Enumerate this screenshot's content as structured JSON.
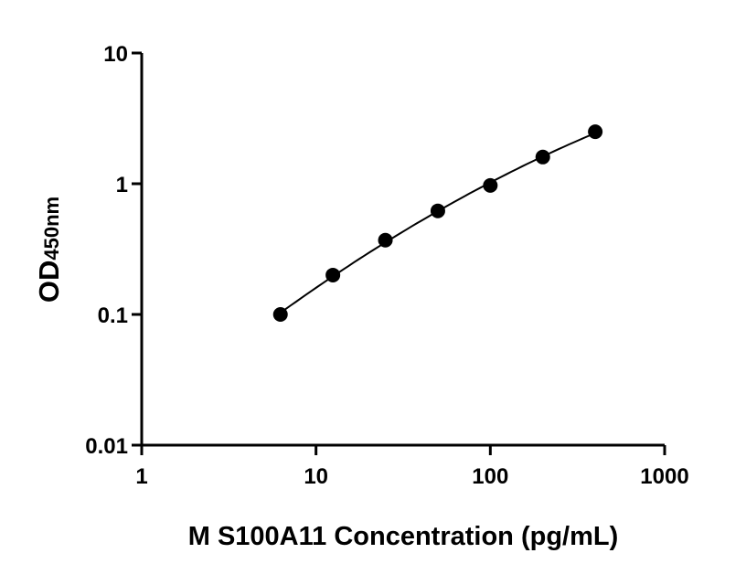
{
  "chart_data": {
    "type": "scatter",
    "title": "",
    "xlabel": "M S100A11 Concentration (pg/mL)",
    "ylabel_main": "OD",
    "ylabel_sub": "450nm",
    "x_scale": "log",
    "y_scale": "log",
    "xlim": [
      1,
      1000
    ],
    "ylim": [
      0.01,
      10
    ],
    "x_ticks": [
      "1",
      "10",
      "100",
      "1000"
    ],
    "y_ticks": [
      "0.01",
      "0.1",
      "1",
      "10"
    ],
    "grid": false,
    "legend": "none",
    "points": {
      "x": [
        6.25,
        12.5,
        25,
        50,
        100,
        200,
        400
      ],
      "y": [
        0.1,
        0.2,
        0.37,
        0.62,
        0.97,
        1.6,
        2.5
      ]
    },
    "fit_curve": true,
    "colors": {
      "points": "#000000",
      "line": "#000000",
      "axes": "#000000"
    }
  }
}
